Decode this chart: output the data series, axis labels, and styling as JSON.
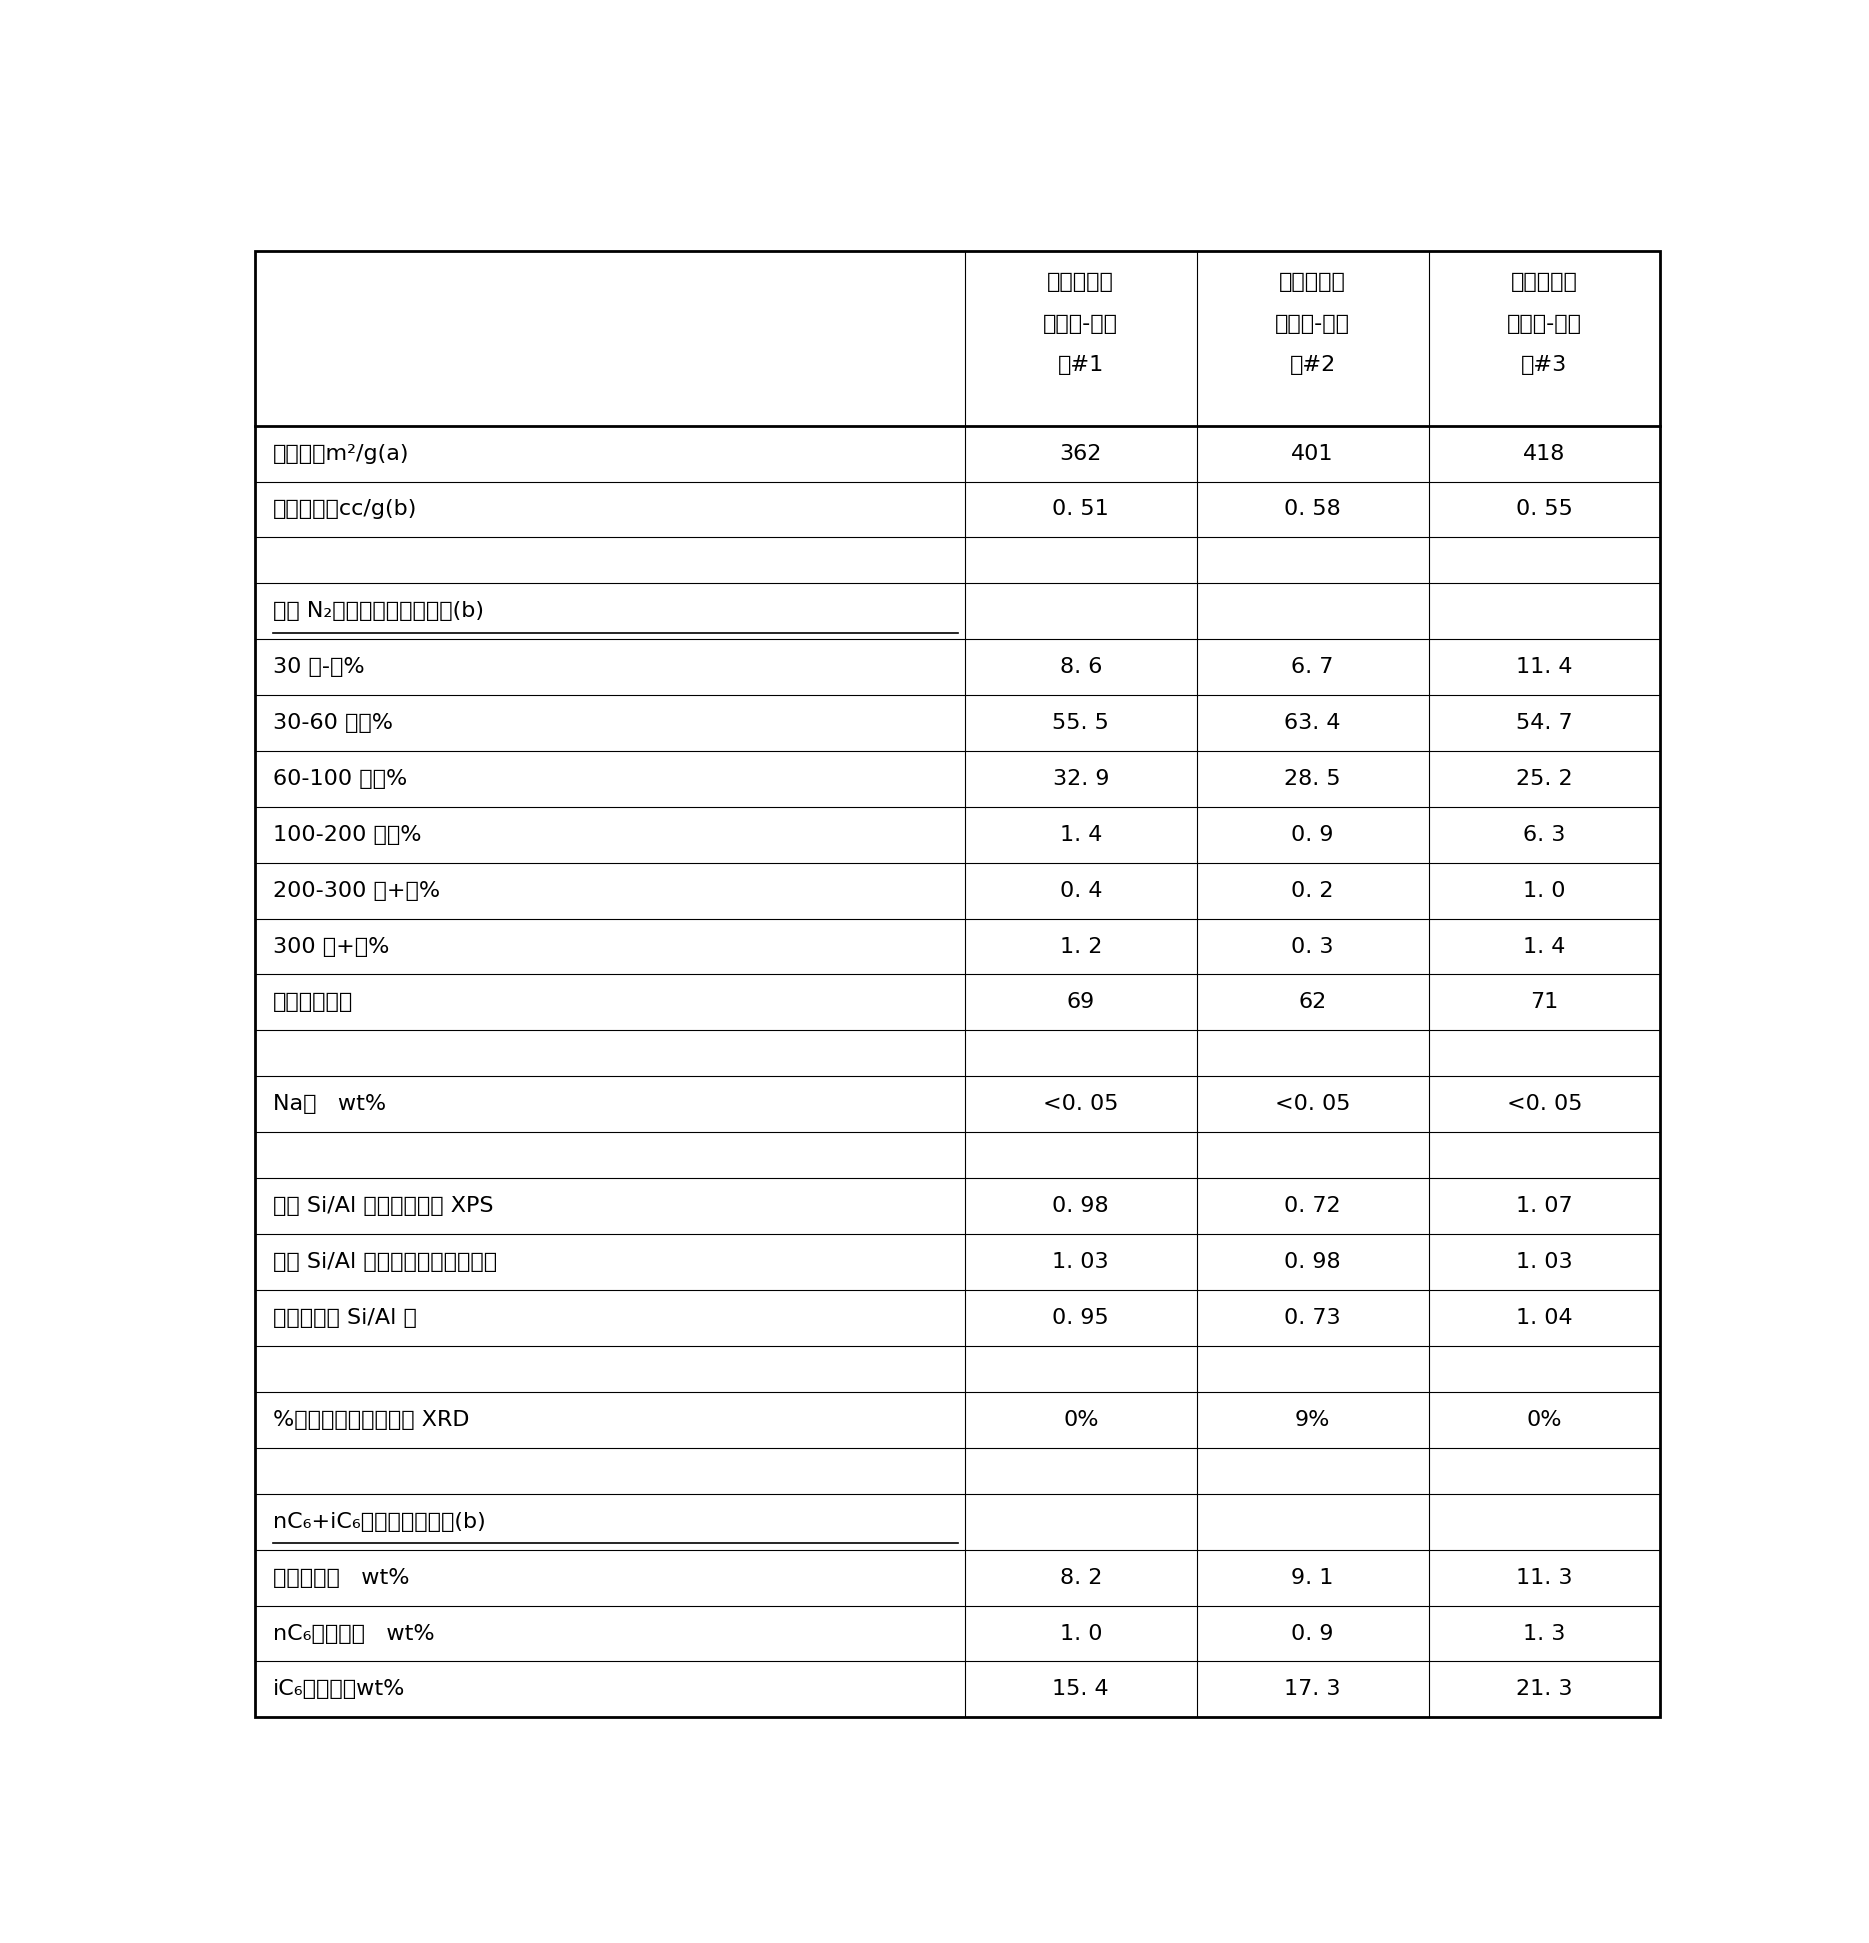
{
  "col_headers": [
    [
      "合乎要求的",
      "氧化硅-氧化",
      "铝#1"
    ],
    [
      "合乎要求的",
      "氧化硅-氧化",
      "铝#2"
    ],
    [
      "合乎要求的",
      "氧化硅-氧化",
      "铝#3"
    ]
  ],
  "rows": [
    {
      "label": "表面积，m²/g(a)",
      "values": [
        "362",
        "401",
        "418"
      ],
      "underline": false,
      "spacer": false
    },
    {
      "label": "总孔体积，cc/g(b)",
      "values": [
        "0. 51",
        "0. 58",
        "0. 55"
      ],
      "underline": false,
      "spacer": false
    },
    {
      "label": "",
      "values": [
        "",
        "",
        ""
      ],
      "underline": false,
      "spacer": true
    },
    {
      "label": "通过 N₂吸附测量的孔径分布(b)",
      "values": [
        "",
        "",
        ""
      ],
      "underline": true,
      "spacer": false
    },
    {
      "label": "30 埃-，%",
      "values": [
        "8. 6",
        "6. 7",
        "11. 4"
      ],
      "underline": false,
      "spacer": false
    },
    {
      "label": "30-60 埃，%",
      "values": [
        "55. 5",
        "63. 4",
        "54. 7"
      ],
      "underline": false,
      "spacer": false
    },
    {
      "label": "60-100 埃，%",
      "values": [
        "32. 9",
        "28. 5",
        "25. 2"
      ],
      "underline": false,
      "spacer": false
    },
    {
      "label": "100-200 埃，%",
      "values": [
        "1. 4",
        "0. 9",
        "6. 3"
      ],
      "underline": false,
      "spacer": false
    },
    {
      "label": "200-300 埃+，%",
      "values": [
        "0. 4",
        "0. 2",
        "1. 0"
      ],
      "underline": false,
      "spacer": false
    },
    {
      "label": "300 埃+，%",
      "values": [
        "1. 2",
        "0. 3",
        "1. 4"
      ],
      "underline": false,
      "spacer": false
    },
    {
      "label": "平均孔径，埃",
      "values": [
        "69",
        "62",
        "71"
      ],
      "underline": false,
      "spacer": false
    },
    {
      "label": "",
      "values": [
        "",
        "",
        ""
      ],
      "underline": false,
      "spacer": true
    },
    {
      "label": "Na，   wt%",
      "values": [
        "<0. 05",
        "<0. 05",
        "<0. 05"
      ],
      "underline": false,
      "spacer": false
    },
    {
      "label": "",
      "values": [
        "",
        "",
        ""
      ],
      "underline": false,
      "spacer": true
    },
    {
      "label": "表面 Si/Al 原子比，通过 XPS",
      "values": [
        "0. 98",
        "0. 72",
        "1. 07"
      ],
      "underline": false,
      "spacer": false
    },
    {
      "label": "本体 Si/Al 原子比，通过元素分析",
      "values": [
        "1. 03",
        "0. 98",
        "1. 03"
      ],
      "underline": false,
      "spacer": false
    },
    {
      "label": "表面与本体 Si/Al 比",
      "values": [
        "0. 95",
        "0. 73",
        "1. 04"
      ],
      "underline": false,
      "spacer": false
    },
    {
      "label": "",
      "values": [
        "",
        "",
        ""
      ],
      "underline": false,
      "spacer": true
    },
    {
      "label": "%结晶氧化铝相，通过 XRD",
      "values": [
        "0%",
        "9%",
        "0%"
      ],
      "underline": false,
      "spacer": false
    },
    {
      "label": "",
      "values": [
        "",
        "",
        ""
      ],
      "underline": false,
      "spacer": true
    },
    {
      "label": "nC₆+iC₆模型化合物试验(b)",
      "values": [
        "",
        "",
        ""
      ],
      "underline": true,
      "spacer": false
    },
    {
      "label": "总转化率，   wt%",
      "values": [
        "8. 2",
        "9. 1",
        "11. 3"
      ],
      "underline": false,
      "spacer": false
    },
    {
      "label": "nC₆转化率，   wt%",
      "values": [
        "1. 0",
        "0. 9",
        "1. 3"
      ],
      "underline": false,
      "spacer": false
    },
    {
      "label": "iC₆转化率，wt%",
      "values": [
        "15. 4",
        "17. 3",
        "21. 3"
      ],
      "underline": false,
      "spacer": false
    }
  ],
  "fig_width": 18.69,
  "fig_height": 19.43
}
